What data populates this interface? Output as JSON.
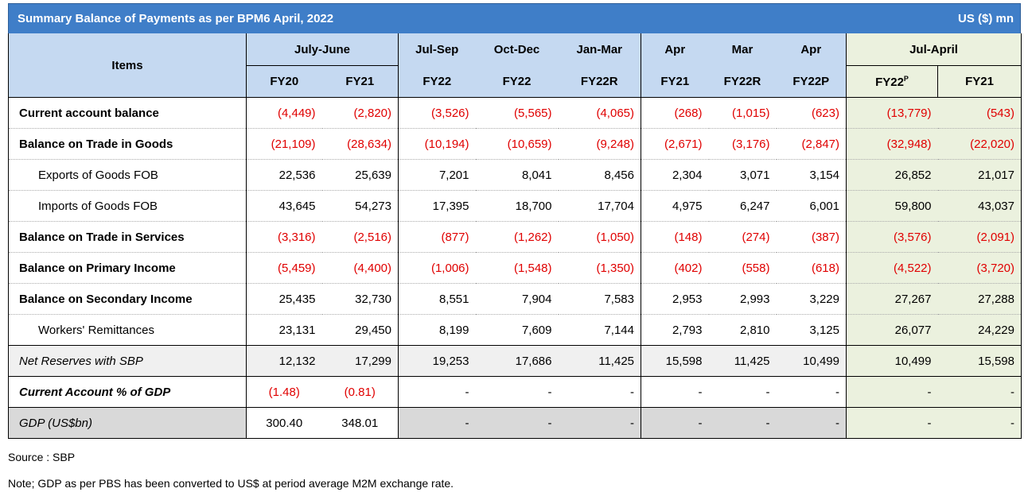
{
  "title": "Summary Balance of Payments as per BPM6 April,  2022",
  "unit": "US ($) mn",
  "header": {
    "items": "Items",
    "groups": [
      "July-June",
      "Jul-Sep",
      "Oct-Dec",
      "Jan-Mar",
      "Apr",
      "Mar",
      "Apr",
      "Jul-April"
    ],
    "cols": [
      "FY20",
      "FY21",
      "FY22",
      "FY22",
      "FY22R",
      "FY21",
      "FY22R",
      "FY22P",
      "FY22",
      "FY21"
    ],
    "sup_p": "P"
  },
  "rows": [
    {
      "label": "Current account balance",
      "style": "bold",
      "values": [
        "(4,449)",
        "(2,820)",
        "(3,526)",
        "(5,565)",
        "(4,065)",
        "(268)",
        "(1,015)",
        "(623)",
        "(13,779)",
        "(543)"
      ]
    },
    {
      "label": "Balance on Trade in Goods",
      "style": "bold",
      "values": [
        "(21,109)",
        "(28,634)",
        "(10,194)",
        "(10,659)",
        "(9,248)",
        "(2,671)",
        "(3,176)",
        "(2,847)",
        "(32,948)",
        "(22,020)"
      ]
    },
    {
      "label": "Exports  of Goods FOB",
      "style": "sub",
      "values": [
        "22,536",
        "25,639",
        "7,201",
        "8,041",
        "8,456",
        "2,304",
        "3,071",
        "3,154",
        "26,852",
        "21,017"
      ]
    },
    {
      "label": "Imports  of Goods FOB",
      "style": "sub",
      "values": [
        "43,645",
        "54,273",
        "17,395",
        "18,700",
        "17,704",
        "4,975",
        "6,247",
        "6,001",
        "59,800",
        "43,037"
      ]
    },
    {
      "label": "Balance on Trade in Services",
      "style": "bold",
      "values": [
        "(3,316)",
        "(2,516)",
        "(877)",
        "(1,262)",
        "(1,050)",
        "(148)",
        "(274)",
        "(387)",
        "(3,576)",
        "(2,091)"
      ]
    },
    {
      "label": "Balance on Primary Income",
      "style": "bold",
      "values": [
        "(5,459)",
        "(4,400)",
        "(1,006)",
        "(1,548)",
        "(1,350)",
        "(402)",
        "(558)",
        "(618)",
        "(4,522)",
        "(3,720)"
      ]
    },
    {
      "label": "Balance on Secondary Income",
      "style": "bold",
      "values": [
        "25,435",
        "32,730",
        "8,551",
        "7,904",
        "7,583",
        "2,953",
        "2,993",
        "3,229",
        "27,267",
        "27,288"
      ]
    },
    {
      "label": "Workers' Remittances",
      "style": "sub",
      "values": [
        "23,131",
        "29,450",
        "8,199",
        "7,609",
        "7,144",
        "2,793",
        "2,810",
        "3,125",
        "26,077",
        "24,229"
      ]
    },
    {
      "label": "Net Reserves with SBP",
      "style": "italic",
      "values": [
        "12,132",
        "17,299",
        "19,253",
        "17,686",
        "11,425",
        "15,598",
        "11,425",
        "10,499",
        "10,499",
        "15,598"
      ]
    },
    {
      "label": "Current Account % of GDP",
      "style": "bolditalic",
      "values": [
        "(1.48)",
        "(0.81)",
        "-",
        "-",
        "-",
        "-",
        "-",
        "-",
        "-",
        "-"
      ]
    },
    {
      "label": "GDP (US$bn)",
      "style": "italic",
      "values": [
        "300.40",
        "348.01",
        "-",
        "-",
        "-",
        "-",
        "-",
        "-",
        "-",
        "-"
      ]
    }
  ],
  "source": "Source : SBP",
  "note": "Note;   GDP as per PBS  has been converted to US$ at period average M2M exchange rate."
}
